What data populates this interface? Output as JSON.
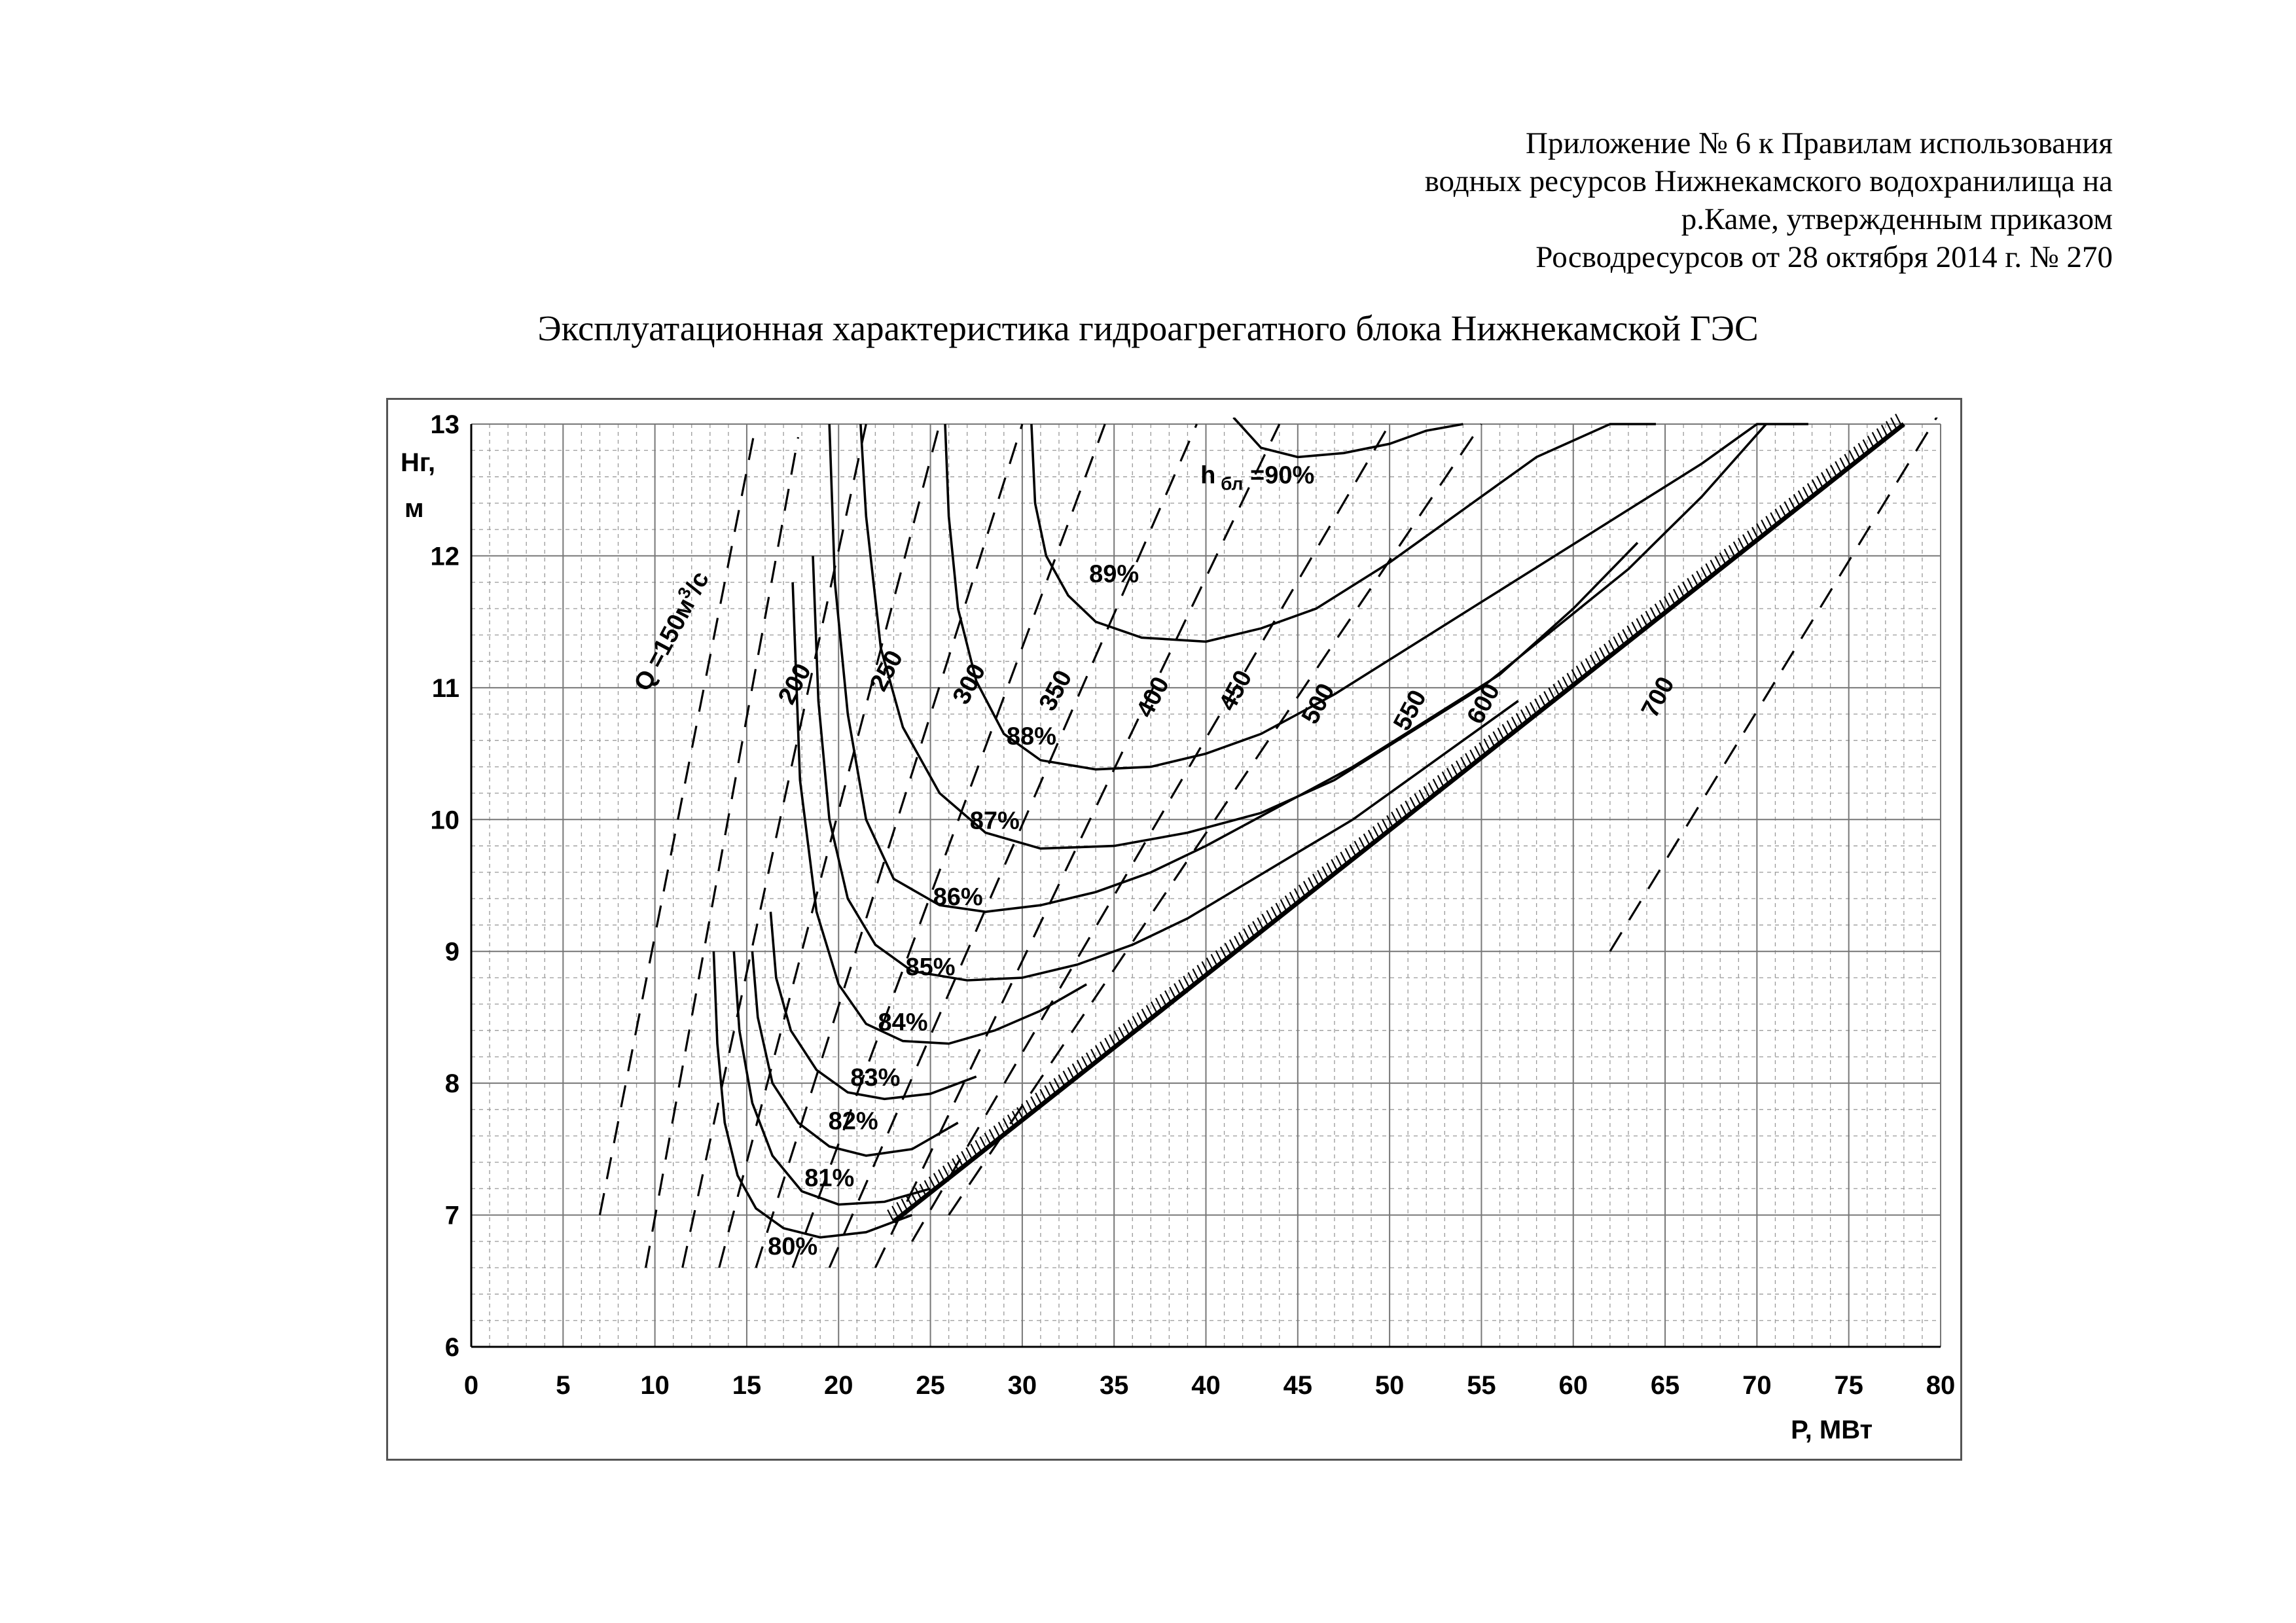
{
  "header": {
    "lines": [
      "Приложение № 6 к Правилам использования",
      "водных ресурсов Нижнекамского водохранилища на",
      "р.Каме, утвержденным приказом",
      "Росводресурсов от 28 октября 2014 г. № 270"
    ]
  },
  "chart_data": {
    "type": "line",
    "title": "Эксплуатационная характеристика гидроагрегатного блока Нижнекамской ГЭС",
    "xlabel": "P, МВт",
    "ylabel": [
      "Hг,",
      "м"
    ],
    "xlim": [
      0,
      80
    ],
    "ylim": [
      6,
      13
    ],
    "xticks": [
      0,
      5,
      10,
      15,
      20,
      25,
      30,
      35,
      40,
      45,
      50,
      55,
      60,
      65,
      70,
      75,
      80
    ],
    "yticks": [
      6,
      7,
      8,
      9,
      10,
      11,
      12,
      13
    ],
    "grid": true,
    "efficiency_series": [
      {
        "name": "80%",
        "x": [
          13.2,
          13.4,
          13.8,
          14.5,
          15.5,
          17,
          19,
          21.5,
          24
        ],
        "y": [
          9.0,
          8.3,
          7.7,
          7.3,
          7.05,
          6.9,
          6.83,
          6.87,
          7.0
        ]
      },
      {
        "name": "81%",
        "x": [
          14.3,
          14.6,
          15.3,
          16.4,
          18,
          20,
          22.5,
          25
        ],
        "y": [
          9.0,
          8.4,
          7.85,
          7.45,
          7.18,
          7.08,
          7.1,
          7.2
        ]
      },
      {
        "name": "82%",
        "x": [
          15.3,
          15.6,
          16.4,
          17.8,
          19.5,
          21.5,
          24,
          26.5
        ],
        "y": [
          9.0,
          8.5,
          8.0,
          7.7,
          7.52,
          7.45,
          7.5,
          7.7
        ]
      },
      {
        "name": "83%",
        "x": [
          16.3,
          16.6,
          17.4,
          18.8,
          20.5,
          22.5,
          25,
          27.5
        ],
        "y": [
          9.3,
          8.8,
          8.4,
          8.1,
          7.93,
          7.88,
          7.92,
          8.05
        ]
      },
      {
        "name": "84%",
        "x": [
          17.5,
          17.9,
          18.8,
          20,
          21.5,
          23.5,
          26,
          28.5,
          31,
          33.5
        ],
        "y": [
          11.8,
          10.3,
          9.3,
          8.75,
          8.45,
          8.32,
          8.3,
          8.4,
          8.55,
          8.75
        ]
      },
      {
        "name": "85%",
        "x": [
          18.6,
          18.9,
          19.5,
          20.5,
          22,
          24,
          27,
          30,
          33,
          36,
          39,
          42,
          45,
          48,
          51,
          54,
          57
        ],
        "y": [
          12.0,
          10.9,
          10.0,
          9.4,
          9.05,
          8.85,
          8.78,
          8.8,
          8.9,
          9.05,
          9.25,
          9.5,
          9.75,
          10.0,
          10.3,
          10.6,
          10.9
        ]
      },
      {
        "name": "86%",
        "x": [
          19.5,
          19.8,
          20.5,
          21.5,
          23,
          25.5,
          28,
          31,
          34,
          37,
          40,
          44,
          48,
          52,
          56,
          60,
          63.5
        ],
        "y": [
          13.0,
          11.8,
          10.8,
          10.0,
          9.55,
          9.35,
          9.3,
          9.35,
          9.45,
          9.6,
          9.8,
          10.1,
          10.4,
          10.75,
          11.1,
          11.6,
          12.1
        ]
      },
      {
        "name": "87%",
        "x": [
          21.2,
          21.5,
          22.3,
          23.5,
          25.5,
          28,
          31,
          35,
          39,
          43,
          47,
          51,
          55,
          59,
          63,
          67,
          70.5
        ],
        "y": [
          13.0,
          12.3,
          11.3,
          10.7,
          10.2,
          9.9,
          9.78,
          9.8,
          9.9,
          10.05,
          10.3,
          10.65,
          11.0,
          11.45,
          11.9,
          12.45,
          13.0
        ]
      },
      {
        "name": "88%",
        "x": [
          25.8,
          26,
          26.5,
          27.5,
          29,
          31,
          34,
          37,
          40,
          43,
          47,
          51,
          55,
          59,
          63,
          67,
          70,
          72.8
        ],
        "y": [
          13.0,
          12.3,
          11.6,
          11.05,
          10.65,
          10.45,
          10.38,
          10.4,
          10.5,
          10.65,
          10.95,
          11.3,
          11.65,
          12.0,
          12.35,
          12.7,
          13.0,
          13.0
        ]
      },
      {
        "name": "89%",
        "x": [
          30.5,
          30.7,
          31.3,
          32.5,
          34,
          36.5,
          40,
          43,
          46,
          50,
          54,
          58,
          62,
          64.5
        ],
        "y": [
          13.0,
          12.4,
          12.0,
          11.7,
          11.5,
          11.38,
          11.35,
          11.45,
          11.6,
          11.95,
          12.35,
          12.75,
          13.0,
          13.0
        ]
      },
      {
        "name": "90%",
        "x": [
          41.5,
          43,
          45,
          47.5,
          50,
          52,
          54
        ],
        "y": [
          13.05,
          12.82,
          12.75,
          12.78,
          12.85,
          12.95,
          13.0
        ]
      }
    ],
    "discharge_series": [
      {
        "name": "Q =150м³/с",
        "x": [
          7.0,
          15.5
        ],
        "y": [
          7.0,
          13.0
        ]
      },
      {
        "name": "200",
        "x": [
          9.5,
          17.8
        ],
        "y": [
          6.6,
          12.9
        ]
      },
      {
        "name": "250",
        "x": [
          11.5,
          21.5
        ],
        "y": [
          6.6,
          13.0
        ]
      },
      {
        "name": "300",
        "x": [
          13.5,
          25.5
        ],
        "y": [
          6.6,
          13.0
        ]
      },
      {
        "name": "350",
        "x": [
          15.5,
          30
        ],
        "y": [
          6.6,
          13.0
        ]
      },
      {
        "name": "400",
        "x": [
          17.5,
          34.5
        ],
        "y": [
          6.6,
          13.0
        ]
      },
      {
        "name": "450",
        "x": [
          19.5,
          39.5
        ],
        "y": [
          6.6,
          13.0
        ]
      },
      {
        "name": "500",
        "x": [
          22,
          44
        ],
        "y": [
          6.6,
          13.0
        ]
      },
      {
        "name": "550",
        "x": [
          24,
          50
        ],
        "y": [
          6.8,
          13.0
        ]
      },
      {
        "name": "600",
        "x": [
          26,
          55
        ],
        "y": [
          7.0,
          13.0
        ]
      },
      {
        "name": "700",
        "x": [
          62,
          80
        ],
        "y": [
          9.0,
          13.1
        ]
      }
    ],
    "efficiency_labels": [
      {
        "text": "80%",
        "x": 17.5,
        "y": 6.7
      },
      {
        "text": "81%",
        "x": 19.5,
        "y": 7.22
      },
      {
        "text": "82%",
        "x": 20.8,
        "y": 7.65
      },
      {
        "text": "83%",
        "x": 22,
        "y": 7.98
      },
      {
        "text": "84%",
        "x": 23.5,
        "y": 8.4
      },
      {
        "text": "85%",
        "x": 25,
        "y": 8.82
      },
      {
        "text": "86%",
        "x": 26.5,
        "y": 9.35
      },
      {
        "text": "87%",
        "x": 28.5,
        "y": 9.93
      },
      {
        "text": "88%",
        "x": 30.5,
        "y": 10.57
      },
      {
        "text": "89%",
        "x": 35,
        "y": 11.8
      }
    ],
    "max_efficiency_label": {
      "prefix": "h",
      "subscript": "бл",
      "value": " =90%"
    },
    "discharge_labels": [
      {
        "text": "Q =150м³/с",
        "x": 11.3,
        "y": 11.4
      },
      {
        "text": "200",
        "x": 18,
        "y": 11.0
      },
      {
        "text": "250",
        "x": 23,
        "y": 11.1
      },
      {
        "text": "300",
        "x": 27.5,
        "y": 11.0
      },
      {
        "text": "350",
        "x": 32.2,
        "y": 10.95
      },
      {
        "text": "400",
        "x": 37.5,
        "y": 10.9
      },
      {
        "text": "450",
        "x": 42,
        "y": 10.95
      },
      {
        "text": "500",
        "x": 46.5,
        "y": 10.85
      },
      {
        "text": "550",
        "x": 51.5,
        "y": 10.8
      },
      {
        "text": "600",
        "x": 55.5,
        "y": 10.85
      },
      {
        "text": "700",
        "x": 65,
        "y": 10.9
      }
    ],
    "limit_line": {
      "x": [
        23,
        78
      ],
      "y": [
        6.95,
        13.0
      ]
    }
  }
}
